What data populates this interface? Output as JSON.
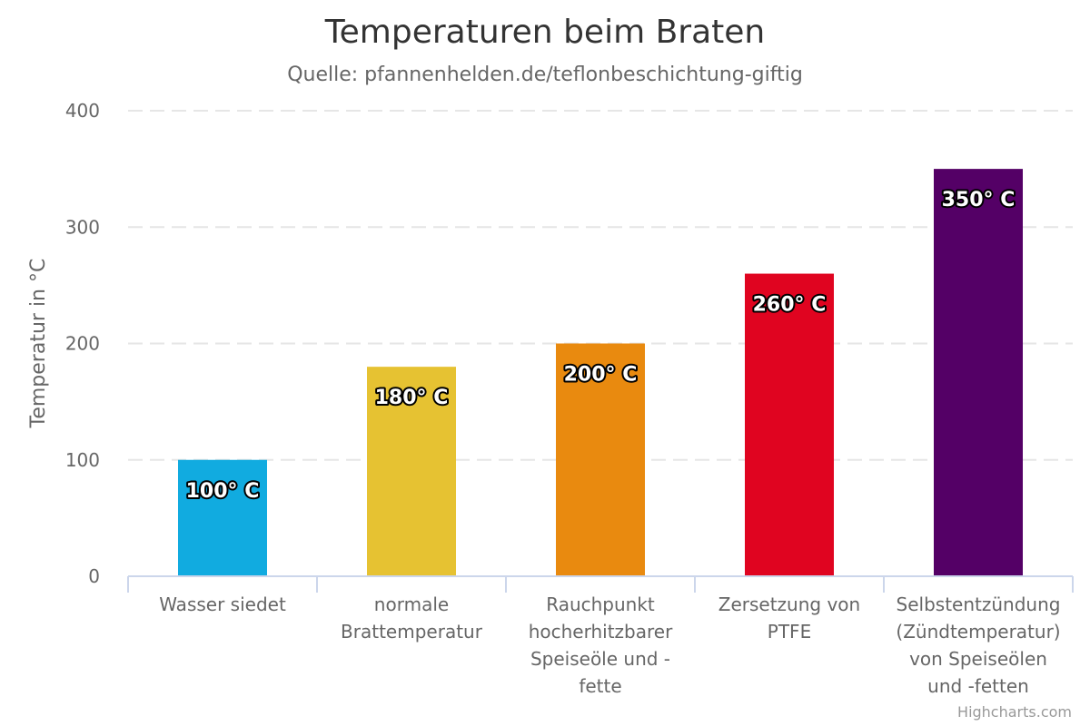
{
  "chart_data": {
    "type": "bar",
    "title": "Temperaturen beim Braten",
    "subtitle": "Quelle: pfannenhelden.de/teflonbeschichtung-giftig",
    "ylabel": "Temperatur in °C",
    "ylim": [
      0,
      400
    ],
    "yticks": [
      0,
      100,
      200,
      300,
      400
    ],
    "grid": true,
    "categories": [
      [
        "Wasser siedet"
      ],
      [
        "normale",
        "Brattemperatur"
      ],
      [
        "Rauchpunkt",
        "hocherhitzbarer",
        "Speiseöle und -",
        "fette"
      ],
      [
        "Zersetzung von",
        "PTFE"
      ],
      [
        "Selbstentzündung",
        "(Zündtemperatur)",
        "von Speiseölen",
        "und -fetten"
      ]
    ],
    "values": [
      100,
      180,
      200,
      260,
      350
    ],
    "data_labels": [
      "100° C",
      "180° C",
      "200° C",
      "260° C",
      "350° C"
    ],
    "colors": [
      "#11abe0",
      "#e6c232",
      "#e98a0f",
      "#e00420",
      "#540066"
    ]
  },
  "credits": "Highcharts.com"
}
